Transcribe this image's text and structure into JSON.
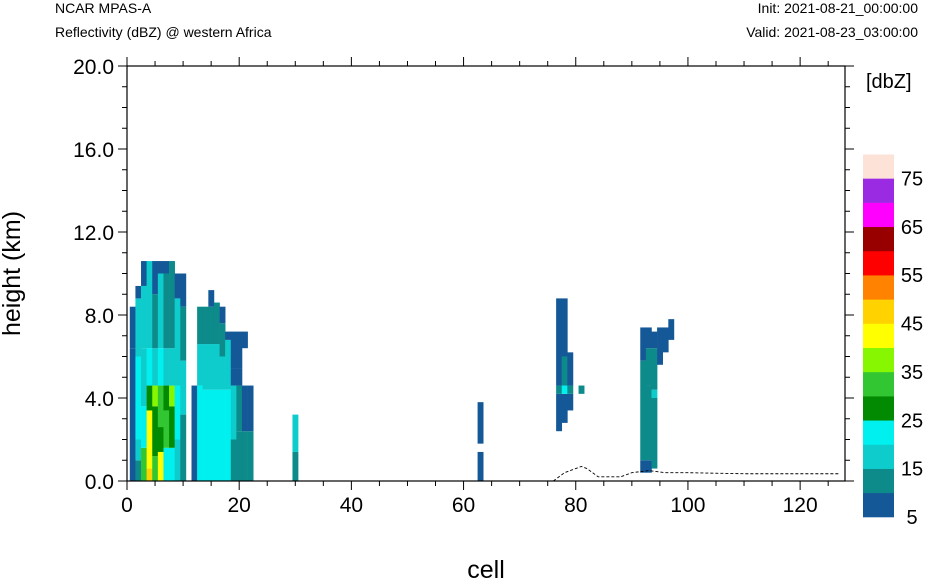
{
  "header": {
    "model": "NCAR MPAS-A",
    "field": "Reflectivity (dBZ) @ western Africa",
    "init": "Init: 2021-08-21_00:00:00",
    "valid": "Valid: 2021-08-23_03:00:00"
  },
  "chart_data": {
    "type": "heatmap",
    "xlabel": "cell",
    "ylabel": "height (km)",
    "xlim": [
      0,
      128
    ],
    "ylim": [
      0,
      20
    ],
    "x_ticks": [
      "0",
      "20",
      "40",
      "60",
      "80",
      "100",
      "120"
    ],
    "y_ticks": [
      "0.0",
      "4.0",
      "8.0",
      "12.0",
      "16.0",
      "20.0"
    ],
    "colorbar": {
      "title": "[dbZ]",
      "levels": [
        5,
        10,
        15,
        20,
        25,
        30,
        35,
        40,
        45,
        50,
        55,
        60,
        65,
        70,
        75
      ],
      "labels": [
        "5",
        "15",
        "25",
        "35",
        "45",
        "55",
        "65",
        "75"
      ],
      "colors": [
        "#155897",
        "#0d8b8b",
        "#0ecccc",
        "#00f0f0",
        "#028a02",
        "#33c633",
        "#86f700",
        "#ffff00",
        "#ffd200",
        "#ff8200",
        "#ff0000",
        "#980000",
        "#ff00ff",
        "#9a2be2",
        "#fde2d8",
        "#ffffff"
      ]
    },
    "columns": [
      {
        "cell": 1,
        "segs": [
          [
            0.0,
            2.0,
            5
          ],
          [
            2.0,
            6.4,
            5
          ],
          [
            6.4,
            8.4,
            5
          ]
        ]
      },
      {
        "cell": 2,
        "segs": [
          [
            0.0,
            1.0,
            10
          ],
          [
            1.0,
            2.0,
            15
          ],
          [
            2.0,
            6.0,
            20
          ],
          [
            6.0,
            8.8,
            15
          ],
          [
            8.8,
            9.4,
            5
          ]
        ]
      },
      {
        "cell": 3,
        "segs": [
          [
            0.0,
            1.6,
            30
          ],
          [
            1.6,
            3.6,
            20
          ],
          [
            3.6,
            6.4,
            15
          ],
          [
            6.4,
            9.4,
            15
          ],
          [
            9.4,
            10.6,
            5
          ]
        ]
      },
      {
        "cell": 4,
        "segs": [
          [
            0.0,
            0.6,
            45
          ],
          [
            0.6,
            3.4,
            40
          ],
          [
            3.4,
            4.6,
            25
          ],
          [
            4.6,
            6.4,
            20
          ],
          [
            6.4,
            10.6,
            15
          ]
        ]
      },
      {
        "cell": 5,
        "segs": [
          [
            0.0,
            1.2,
            30
          ],
          [
            1.2,
            3.6,
            25
          ],
          [
            3.6,
            4.6,
            35
          ],
          [
            4.6,
            6.4,
            15
          ],
          [
            6.4,
            9.0,
            10
          ],
          [
            9.0,
            10.6,
            5
          ]
        ]
      },
      {
        "cell": 6,
        "segs": [
          [
            0.0,
            1.4,
            40
          ],
          [
            1.4,
            2.6,
            25
          ],
          [
            2.6,
            4.6,
            30
          ],
          [
            4.6,
            6.4,
            20
          ],
          [
            6.4,
            10.0,
            15
          ],
          [
            10.0,
            10.6,
            5
          ]
        ]
      },
      {
        "cell": 7,
        "segs": [
          [
            0.0,
            1.6,
            20
          ],
          [
            1.6,
            3.4,
            30
          ],
          [
            3.4,
            4.6,
            25
          ],
          [
            4.6,
            6.4,
            15
          ],
          [
            6.4,
            10.0,
            10
          ],
          [
            10.0,
            10.6,
            5
          ]
        ]
      },
      {
        "cell": 8,
        "segs": [
          [
            0.0,
            1.6,
            20
          ],
          [
            1.6,
            3.6,
            25
          ],
          [
            3.6,
            4.6,
            35
          ],
          [
            4.6,
            6.4,
            15
          ],
          [
            6.4,
            10.6,
            10
          ]
        ]
      },
      {
        "cell": 9,
        "segs": [
          [
            0.0,
            2.0,
            15
          ],
          [
            2.0,
            4.6,
            20
          ],
          [
            4.6,
            8.8,
            15
          ],
          [
            8.8,
            10.0,
            5
          ]
        ]
      },
      {
        "cell": 10,
        "segs": [
          [
            0.0,
            3.2,
            10
          ],
          [
            3.2,
            5.8,
            15
          ],
          [
            5.8,
            8.4,
            10
          ],
          [
            8.4,
            10.0,
            5
          ]
        ]
      },
      {
        "cell": 12,
        "segs": [
          [
            0.0,
            4.6,
            5
          ]
        ]
      },
      {
        "cell": 13,
        "segs": [
          [
            0.0,
            4.6,
            20
          ],
          [
            4.6,
            6.6,
            15
          ],
          [
            6.6,
            8.4,
            10
          ]
        ]
      },
      {
        "cell": 14,
        "segs": [
          [
            0.0,
            4.4,
            20
          ],
          [
            4.4,
            6.6,
            15
          ],
          [
            6.6,
            8.4,
            10
          ]
        ]
      },
      {
        "cell": 15,
        "segs": [
          [
            0.0,
            4.4,
            20
          ],
          [
            4.4,
            6.6,
            15
          ],
          [
            6.6,
            8.4,
            10
          ],
          [
            8.4,
            9.2,
            5
          ]
        ]
      },
      {
        "cell": 16,
        "segs": [
          [
            0.0,
            4.4,
            20
          ],
          [
            4.4,
            6.6,
            15
          ],
          [
            6.6,
            8.6,
            10
          ]
        ]
      },
      {
        "cell": 17,
        "segs": [
          [
            0.0,
            4.4,
            20
          ],
          [
            4.4,
            6.0,
            15
          ],
          [
            6.0,
            7.6,
            10
          ],
          [
            7.6,
            8.4,
            5
          ]
        ]
      },
      {
        "cell": 18,
        "segs": [
          [
            0.0,
            4.4,
            20
          ],
          [
            4.4,
            6.8,
            15
          ],
          [
            6.8,
            7.2,
            5
          ]
        ]
      },
      {
        "cell": 19,
        "segs": [
          [
            0.0,
            2.0,
            10
          ],
          [
            2.0,
            4.6,
            15
          ],
          [
            4.6,
            5.4,
            5
          ],
          [
            5.4,
            7.2,
            5
          ]
        ]
      },
      {
        "cell": 20,
        "segs": [
          [
            0.0,
            2.4,
            10
          ],
          [
            2.4,
            4.6,
            10
          ],
          [
            4.6,
            5.4,
            5
          ],
          [
            5.4,
            7.2,
            5
          ]
        ]
      },
      {
        "cell": 21,
        "segs": [
          [
            0.0,
            2.4,
            10
          ],
          [
            2.4,
            4.6,
            5
          ],
          [
            6.4,
            7.2,
            5
          ]
        ]
      },
      {
        "cell": 22,
        "segs": [
          [
            0.0,
            2.4,
            10
          ],
          [
            2.4,
            4.6,
            5
          ]
        ]
      },
      {
        "cell": 30,
        "segs": [
          [
            0.0,
            1.4,
            10
          ],
          [
            1.4,
            3.2,
            15
          ]
        ]
      },
      {
        "cell": 63,
        "segs": [
          [
            0.0,
            1.4,
            5
          ],
          [
            1.8,
            3.8,
            5
          ]
        ]
      },
      {
        "cell": 77,
        "segs": [
          [
            2.4,
            4.2,
            5
          ],
          [
            4.2,
            4.6,
            10
          ],
          [
            4.6,
            6.0,
            5
          ],
          [
            6.0,
            8.8,
            5
          ]
        ]
      },
      {
        "cell": 78,
        "segs": [
          [
            2.8,
            4.2,
            5
          ],
          [
            4.2,
            4.6,
            20
          ],
          [
            4.6,
            6.0,
            10
          ],
          [
            6.0,
            8.8,
            5
          ]
        ]
      },
      {
        "cell": 79,
        "segs": [
          [
            3.4,
            4.2,
            5
          ],
          [
            4.2,
            4.6,
            10
          ],
          [
            4.6,
            6.2,
            5
          ]
        ]
      },
      {
        "cell": 81,
        "segs": [
          [
            4.2,
            4.6,
            10
          ]
        ]
      },
      {
        "cell": 92,
        "segs": [
          [
            0.4,
            1.0,
            5
          ],
          [
            1.0,
            5.8,
            10
          ],
          [
            5.8,
            7.4,
            5
          ]
        ]
      },
      {
        "cell": 93,
        "segs": [
          [
            0.4,
            1.0,
            5
          ],
          [
            1.0,
            4.6,
            10
          ],
          [
            4.6,
            6.4,
            10
          ],
          [
            6.4,
            7.4,
            5
          ]
        ]
      },
      {
        "cell": 94,
        "segs": [
          [
            0.6,
            4.0,
            10
          ],
          [
            4.0,
            4.4,
            15
          ],
          [
            4.4,
            6.4,
            10
          ],
          [
            6.4,
            7.2,
            5
          ]
        ]
      },
      {
        "cell": 95,
        "segs": [
          [
            5.6,
            7.4,
            5
          ]
        ]
      },
      {
        "cell": 96,
        "segs": [
          [
            6.2,
            7.4,
            5
          ]
        ]
      },
      {
        "cell": 97,
        "segs": [
          [
            6.8,
            7.8,
            5
          ]
        ]
      }
    ],
    "terrain": [
      [
        76,
        0.0
      ],
      [
        78,
        0.4
      ],
      [
        80,
        0.6
      ],
      [
        81,
        0.7
      ],
      [
        82,
        0.6
      ],
      [
        84,
        0.2
      ],
      [
        88,
        0.2
      ],
      [
        90,
        0.4
      ],
      [
        93,
        0.5
      ],
      [
        96,
        0.4
      ],
      [
        100,
        0.4
      ],
      [
        110,
        0.35
      ],
      [
        120,
        0.35
      ],
      [
        127,
        0.35
      ]
    ]
  }
}
